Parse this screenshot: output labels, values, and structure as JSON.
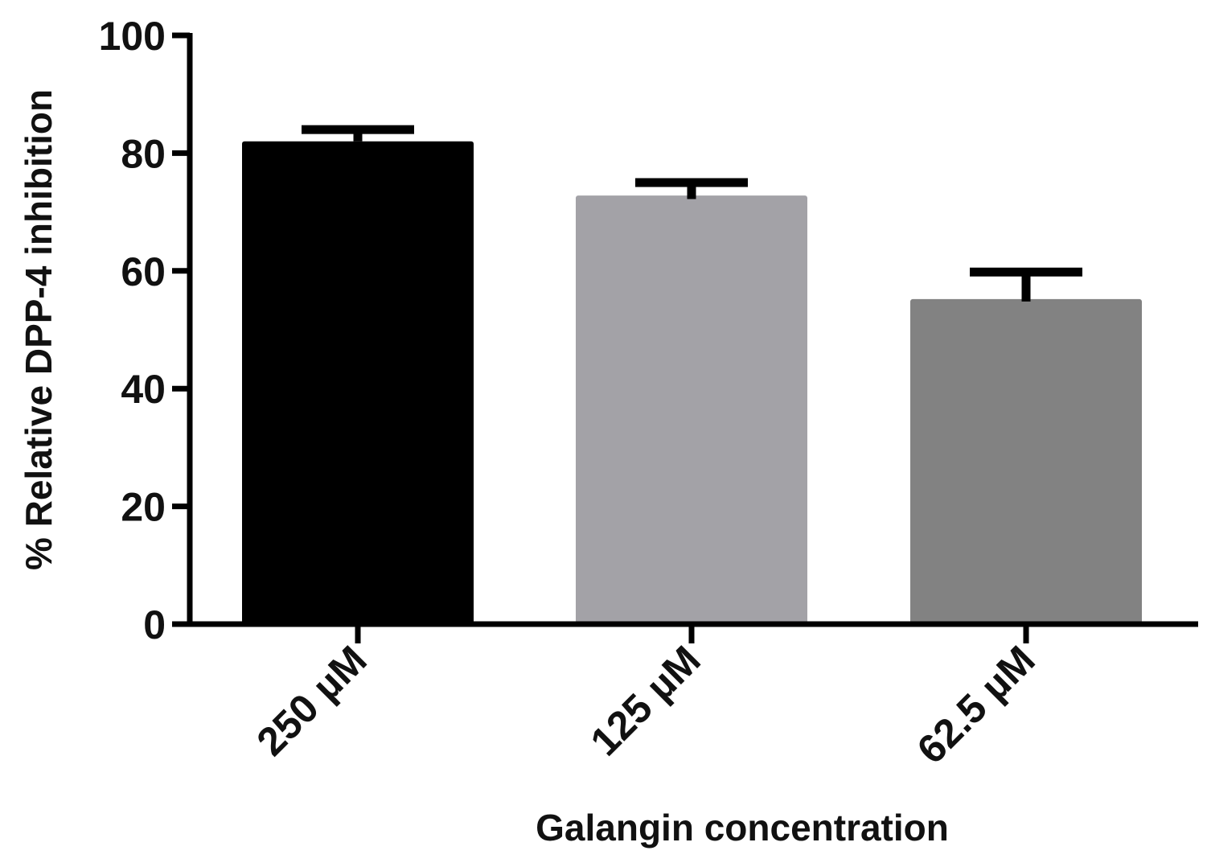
{
  "chart_data": {
    "type": "bar",
    "title": "",
    "xlabel": "Galangin concentration",
    "ylabel": "% Relative DPP-4 inhibition",
    "ylim": [
      0,
      100
    ],
    "yticks": [
      0,
      20,
      40,
      60,
      80,
      100
    ],
    "categories": [
      "250 µM",
      "125 µM",
      "62.5 µM"
    ],
    "values": [
      82,
      72.8,
      55.2
    ],
    "error_upper": [
      84,
      75,
      59.8
    ],
    "error_lower": [
      82,
      72.2,
      54.8
    ],
    "bar_colors": [
      "#000000",
      "#a3a2a7",
      "#828282"
    ],
    "grid": false,
    "legend": "none"
  }
}
